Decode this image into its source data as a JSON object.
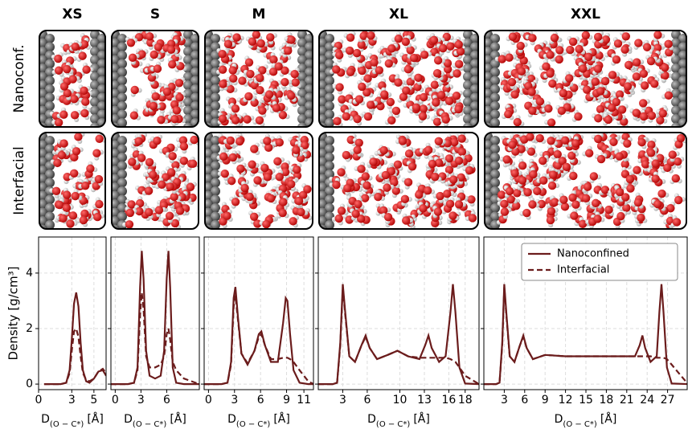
{
  "row_labels": [
    "Nanoconf.",
    "Interfacial"
  ],
  "chart_data": [
    {
      "type": "line",
      "title": "XS",
      "ylabel": "Density [g/cm³]",
      "show_ytick_labels": true,
      "xlabel": {
        "main": "D",
        "sub": "(O − C*)",
        "unit": "[Å]"
      },
      "xlim": [
        0,
        6.1
      ],
      "xticks": [
        0,
        3,
        5
      ],
      "ylim": [
        -0.2,
        5.3
      ],
      "yticks": [
        0,
        2,
        4
      ],
      "grid": true,
      "x": [
        0.5,
        2.0,
        2.5,
        2.8,
        3.0,
        3.2,
        3.4,
        3.6,
        3.8,
        4.0,
        4.3,
        4.6,
        5.0,
        5.4,
        5.8,
        6.1
      ],
      "series": [
        {
          "color": "#6b1c1c",
          "dashed": false,
          "values": [
            0,
            0,
            0.05,
            0.5,
            1.6,
            2.9,
            3.3,
            2.8,
            1.5,
            0.5,
            0.1,
            0.05,
            0.2,
            0.45,
            0.5,
            0.3
          ]
        },
        {
          "color": "#6b1c1c",
          "dashed": true,
          "values": [
            0,
            0,
            0.05,
            0.4,
            1.2,
            1.9,
            2.0,
            1.7,
            1.0,
            0.4,
            0.15,
            0.1,
            0.2,
            0.45,
            0.55,
            0.4
          ]
        }
      ]
    },
    {
      "type": "line",
      "title": "S",
      "show_ytick_labels": false,
      "xlabel": {
        "main": "D",
        "sub": "(O − C*)",
        "unit": "[Å]"
      },
      "xlim": [
        -0.5,
        9.8
      ],
      "xticks": [
        0,
        3,
        6
      ],
      "ylim": [
        -0.2,
        5.3
      ],
      "yticks": [
        0,
        2,
        4
      ],
      "grid": true,
      "x": [
        -0.5,
        1.5,
        2.2,
        2.6,
        2.9,
        3.1,
        3.3,
        3.6,
        4.0,
        4.65,
        5.3,
        5.7,
        6.0,
        6.2,
        6.4,
        6.7,
        7.1,
        8.0,
        9.8
      ],
      "series": [
        {
          "color": "#6b1c1c",
          "dashed": false,
          "values": [
            0,
            0,
            0.05,
            0.6,
            3.5,
            4.8,
            3.8,
            1.2,
            0.3,
            0.2,
            0.3,
            1.2,
            3.8,
            4.8,
            3.5,
            0.6,
            0.05,
            0,
            0
          ]
        },
        {
          "color": "#6b1c1c",
          "dashed": true,
          "values": [
            0,
            0,
            0.05,
            0.5,
            2.5,
            3.3,
            2.7,
            1.0,
            0.6,
            0.6,
            0.7,
            1.0,
            1.8,
            2.0,
            1.6,
            0.8,
            0.5,
            0.2,
            0
          ]
        }
      ]
    },
    {
      "type": "line",
      "title": "M",
      "show_ytick_labels": false,
      "xlabel": {
        "main": "D",
        "sub": "(O − C*)",
        "unit": "[Å]"
      },
      "xlim": [
        -0.5,
        12.1
      ],
      "xticks": [
        0,
        3,
        6,
        9,
        11
      ],
      "ylim": [
        -0.2,
        5.3
      ],
      "yticks": [
        0,
        2,
        4
      ],
      "grid": true,
      "x": [
        -0.5,
        1.5,
        2.2,
        2.6,
        2.9,
        3.1,
        3.4,
        3.8,
        4.5,
        5.3,
        5.8,
        6.1,
        6.5,
        7.2,
        8.0,
        8.6,
        8.9,
        9.1,
        9.4,
        9.8,
        10.5,
        11.5,
        12.1
      ],
      "series": [
        {
          "color": "#6b1c1c",
          "dashed": false,
          "values": [
            0,
            0,
            0.05,
            0.8,
            3.1,
            3.5,
            2.4,
            1.1,
            0.7,
            1.2,
            1.8,
            1.9,
            1.4,
            0.8,
            0.8,
            2.2,
            3.1,
            3.0,
            1.8,
            0.5,
            0.05,
            0,
            0
          ]
        },
        {
          "color": "#6b1c1c",
          "dashed": true,
          "values": [
            0,
            0,
            0.05,
            0.7,
            2.8,
            3.2,
            2.3,
            1.1,
            0.75,
            1.2,
            1.7,
            1.8,
            1.4,
            0.9,
            0.9,
            0.95,
            0.95,
            0.95,
            0.9,
            0.8,
            0.5,
            0.1,
            0
          ]
        }
      ]
    },
    {
      "type": "line",
      "title": "XL",
      "show_ytick_labels": false,
      "xlabel": {
        "main": "D",
        "sub": "(O − C*)",
        "unit": "[Å]"
      },
      "xlim": [
        0,
        19.7
      ],
      "xticks": [
        3,
        6,
        10,
        13,
        16,
        18
      ],
      "ylim": [
        -0.2,
        5.3
      ],
      "yticks": [
        0,
        2,
        4
      ],
      "grid": true,
      "x": [
        0,
        1.8,
        2.3,
        2.7,
        3.0,
        3.3,
        3.8,
        4.5,
        5.3,
        5.8,
        6.3,
        7.2,
        8.5,
        9.7,
        11,
        12.4,
        13.1,
        13.5,
        13.9,
        14.8,
        15.6,
        16.2,
        16.5,
        16.8,
        17.3,
        18,
        19.7
      ],
      "series": [
        {
          "color": "#6b1c1c",
          "dashed": false,
          "values": [
            0,
            0,
            0.05,
            1.5,
            3.6,
            2.6,
            1.0,
            0.8,
            1.4,
            1.75,
            1.3,
            0.9,
            1.05,
            1.2,
            1.0,
            0.9,
            1.4,
            1.75,
            1.3,
            0.8,
            1.0,
            2.6,
            3.6,
            2.6,
            0.6,
            0.02,
            0
          ]
        },
        {
          "color": "#6b1c1c",
          "dashed": true,
          "values": [
            0,
            0,
            0.05,
            1.4,
            3.5,
            2.5,
            1.0,
            0.8,
            1.4,
            1.7,
            1.3,
            0.9,
            1.05,
            1.2,
            1.0,
            0.95,
            0.95,
            0.95,
            0.95,
            0.95,
            0.95,
            0.9,
            0.85,
            0.8,
            0.6,
            0.3,
            0
          ]
        }
      ]
    },
    {
      "type": "line",
      "title": "XXL",
      "show_ytick_labels": false,
      "legend": "upper right",
      "xlabel": {
        "main": "D",
        "sub": "(O − C*)",
        "unit": "[Å]"
      },
      "xlim": [
        0,
        30
      ],
      "xticks": [
        3,
        6,
        9,
        12,
        15,
        18,
        21,
        24,
        27
      ],
      "ylim": [
        -0.2,
        5.3
      ],
      "yticks": [
        0,
        2,
        4
      ],
      "grid": true,
      "x": [
        0,
        1.8,
        2.3,
        2.7,
        3.0,
        3.3,
        3.8,
        4.5,
        5.3,
        5.8,
        6.3,
        7.2,
        9,
        12,
        15,
        18,
        21,
        22.2,
        22.9,
        23.3,
        23.7,
        24.5,
        25.4,
        25.8,
        26.1,
        26.4,
        26.9,
        27.6,
        30
      ],
      "series": [
        {
          "name": "Nanoconfined",
          "color": "#6b1c1c",
          "dashed": false,
          "values": [
            0,
            0,
            0.05,
            1.5,
            3.6,
            2.6,
            1.0,
            0.8,
            1.4,
            1.75,
            1.3,
            0.9,
            1.05,
            1.0,
            1.0,
            1.0,
            1.0,
            1.0,
            1.4,
            1.75,
            1.3,
            0.8,
            1.0,
            2.6,
            3.6,
            2.6,
            0.6,
            0.02,
            0
          ]
        },
        {
          "name": "Interfacial",
          "color": "#6b1c1c",
          "dashed": true,
          "values": [
            0,
            0,
            0.05,
            1.4,
            3.5,
            2.5,
            1.0,
            0.8,
            1.4,
            1.7,
            1.3,
            0.9,
            1.05,
            1.0,
            1.0,
            1.0,
            1.0,
            1.0,
            1.0,
            1.0,
            1.0,
            1.0,
            0.95,
            0.95,
            0.95,
            0.95,
            0.9,
            0.7,
            0
          ]
        }
      ]
    }
  ]
}
